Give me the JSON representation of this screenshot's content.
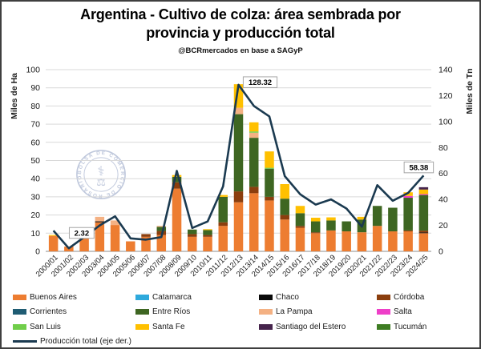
{
  "header": {
    "title": "Argentina - Cultivo de colza: área sembrada por provincia y producción total",
    "subtitle": "@BCRmercados en base a SAGyP"
  },
  "watermark": {
    "text": "BOLSA DE COMERCIO DE ROSARIO"
  },
  "chart_data": {
    "type": "bar",
    "subtype": "stacked-bars-with-secondary-axis-line",
    "title": "Argentina - Cultivo de colza: área sembrada por provincia y producción total",
    "categories": [
      "2000/01",
      "2001/02",
      "2002/03",
      "2003/04",
      "2004/05",
      "2005/06",
      "2006/07",
      "2007/08",
      "2008/09",
      "2009/10",
      "2010/11",
      "2011/12",
      "2012/13",
      "2013/14",
      "2014/15",
      "2015/16",
      "2016/17",
      "2017/18",
      "2018/19",
      "2019/20",
      "2020/21",
      "2021/22",
      "2022/23",
      "2023/24",
      "2024/25"
    ],
    "left_axis": {
      "title": "Miles de Ha",
      "min": 0,
      "max": 100,
      "step": 10
    },
    "right_axis": {
      "title": "Miles de Tn",
      "min": 0,
      "max": 140,
      "step": 20
    },
    "grid": true,
    "legend_position": "bottom",
    "series": [
      {
        "name": "Buenos Aires",
        "color": "#ED7D31",
        "values": [
          8.5,
          2.6,
          7.4,
          16,
          14.5,
          5.5,
          8,
          9,
          34.5,
          8,
          8,
          14,
          27,
          32,
          28,
          17.5,
          13,
          10,
          11.5,
          11,
          10.5,
          14,
          11,
          11,
          10
        ]
      },
      {
        "name": "Catamarca",
        "color": "#2EA9DC",
        "values": [
          0,
          0,
          0,
          0,
          0,
          0,
          0,
          0,
          0,
          0,
          0,
          0,
          0,
          0,
          0,
          0,
          0,
          0,
          0,
          0,
          0,
          0,
          0,
          0,
          0
        ]
      },
      {
        "name": "Chaco",
        "color": "#0A0A0A",
        "values": [
          0,
          0,
          0,
          0.5,
          0,
          0,
          0,
          0,
          0,
          0,
          0,
          0,
          0,
          0,
          0,
          0,
          0,
          0,
          0,
          0,
          0,
          0,
          0,
          0,
          0.4
        ]
      },
      {
        "name": "Córdoba",
        "color": "#8B3E0E",
        "values": [
          0,
          0,
          0,
          0,
          0,
          0,
          1.5,
          2.2,
          3.5,
          1.5,
          1,
          2,
          6,
          3.5,
          2,
          2.5,
          1,
          0.5,
          0,
          0,
          0,
          0,
          0,
          0.5,
          1
        ]
      },
      {
        "name": "Corrientes",
        "color": "#1F5C73",
        "values": [
          0,
          0,
          0,
          0,
          0,
          0,
          0,
          0,
          0,
          0,
          0,
          0,
          0,
          0,
          0,
          0,
          0,
          0,
          0,
          0,
          0,
          0,
          0,
          0,
          0
        ]
      },
      {
        "name": "Entre Ríos",
        "color": "#3E6622",
        "values": [
          0,
          0,
          0,
          0,
          0,
          0,
          0,
          2.3,
          3,
          2.5,
          2.7,
          14,
          42.5,
          27,
          15.5,
          9,
          7,
          6,
          5.5,
          5.5,
          7,
          11,
          13,
          18,
          19.6
        ]
      },
      {
        "name": "La Pampa",
        "color": "#F4B183",
        "values": [
          0,
          0,
          0,
          2.5,
          2.5,
          0,
          0,
          0.5,
          0,
          0,
          0,
          0,
          3.5,
          2.8,
          0,
          0,
          0,
          0,
          0,
          0,
          0,
          0,
          0,
          0,
          0
        ]
      },
      {
        "name": "Salta",
        "color": "#EE3FC8",
        "values": [
          0,
          0,
          0,
          0,
          0,
          0,
          0,
          0,
          0,
          0,
          0,
          0,
          0,
          0,
          0,
          0,
          0,
          0,
          0,
          0,
          0,
          0,
          0,
          1,
          0.5
        ]
      },
      {
        "name": "San Luis",
        "color": "#70CE4A",
        "values": [
          0,
          0,
          0,
          0,
          0,
          0,
          0,
          0,
          0,
          0,
          0,
          0,
          0,
          0.7,
          0.5,
          0,
          0,
          0,
          0,
          0,
          0,
          0,
          0,
          0,
          0
        ]
      },
      {
        "name": "Santa Fe",
        "color": "#FFC000",
        "values": [
          0.5,
          0,
          0,
          0,
          0,
          0,
          0,
          0,
          1,
          0,
          0.5,
          1,
          13,
          5,
          9,
          8,
          4,
          2,
          1.7,
          0,
          1.5,
          0,
          0,
          2,
          2.5
        ]
      },
      {
        "name": "Santiago del Estero",
        "color": "#46244C",
        "values": [
          0,
          0,
          0,
          0,
          0,
          0,
          0,
          0,
          0,
          0,
          0,
          0,
          0,
          0,
          0,
          0,
          0,
          0,
          0,
          0,
          0,
          0,
          0,
          0,
          1.3
        ]
      },
      {
        "name": "Tucumán",
        "color": "#3E7D23",
        "values": [
          0,
          0,
          0,
          0,
          0,
          0,
          0,
          0,
          0,
          0,
          0,
          0,
          0,
          0,
          0,
          0,
          0,
          0,
          0,
          0,
          0,
          0,
          0,
          0,
          0
        ]
      }
    ],
    "line_series": {
      "name": "Producción total (eje der.)",
      "color": "#1B3A50",
      "axis": "right",
      "values": [
        16,
        2.32,
        11,
        20,
        27,
        10,
        9,
        11,
        62,
        18,
        23,
        50,
        128.32,
        112,
        104,
        58,
        44,
        36,
        40,
        33,
        19,
        51,
        39,
        45,
        58.38
      ]
    },
    "annotations": [
      {
        "text": "2.32",
        "category": "2001/02"
      },
      {
        "text": "128.32",
        "category": "2012/13"
      },
      {
        "text": "58.38",
        "category": "2024/25"
      }
    ]
  }
}
